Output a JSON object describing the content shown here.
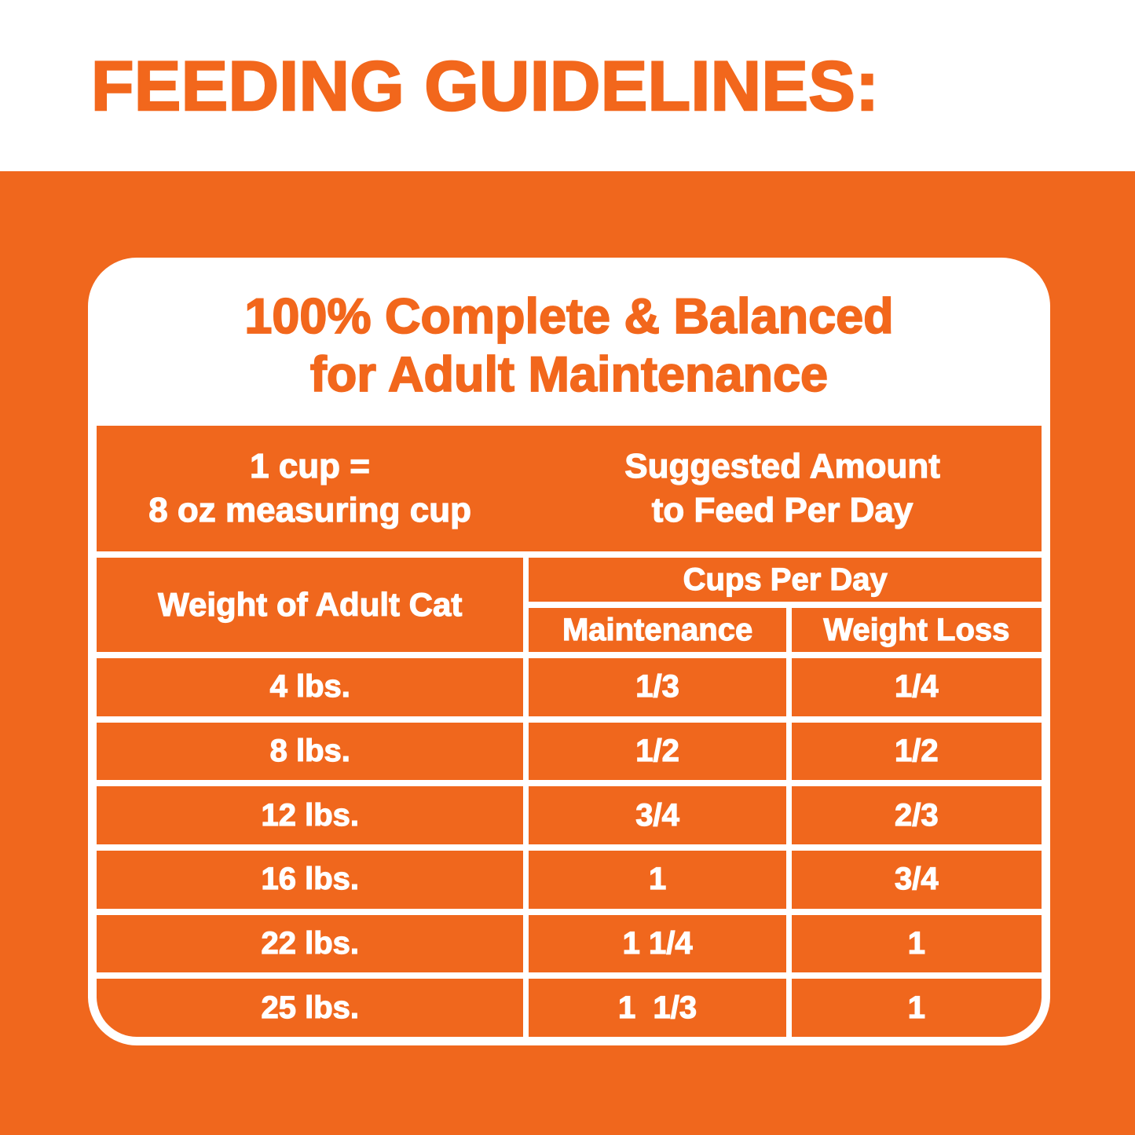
{
  "page": {
    "title": "FEEDING GUIDELINES:"
  },
  "colors": {
    "orange_background": "#F0671D",
    "orange_text": "#F2671C",
    "white": "#FFFFFF"
  },
  "card": {
    "heading_line1": "100% Complete & Balanced",
    "heading_line2": "for Adult Maintenance",
    "cup_note_line1": "1 cup =",
    "cup_note_line2": "8 oz measuring cup",
    "suggested_line1": "Suggested Amount",
    "suggested_line2": "to Feed Per Day"
  },
  "table": {
    "weight_header": "Weight of Adult Cat",
    "cups_header": "Cups Per Day",
    "col_maintenance": "Maintenance",
    "col_weight_loss": "Weight Loss",
    "rows": [
      {
        "weight": "4 lbs.",
        "maintenance": "1/3",
        "weight_loss": "1/4"
      },
      {
        "weight": "8 lbs.",
        "maintenance": "1/2",
        "weight_loss": "1/2"
      },
      {
        "weight": "12 lbs.",
        "maintenance": "3/4",
        "weight_loss": "2/3"
      },
      {
        "weight": "16 lbs.",
        "maintenance": "1",
        "weight_loss": "3/4"
      },
      {
        "weight": "22 lbs.",
        "maintenance": "1 1/4",
        "weight_loss": "1"
      },
      {
        "weight": "25 lbs.",
        "maintenance": "1  1/3",
        "weight_loss": "1"
      }
    ]
  },
  "chart_data": {
    "type": "table",
    "title": "FEEDING GUIDELINES: 100% Complete & Balanced for Adult Maintenance",
    "note": "1 cup = 8 oz measuring cup",
    "group_header": "Suggested Amount to Feed Per Day (Cups Per Day)",
    "columns": [
      "Weight of Adult Cat",
      "Maintenance",
      "Weight Loss"
    ],
    "rows": [
      [
        "4 lbs.",
        "1/3",
        "1/4"
      ],
      [
        "8 lbs.",
        "1/2",
        "1/2"
      ],
      [
        "12 lbs.",
        "3/4",
        "2/3"
      ],
      [
        "16 lbs.",
        "1",
        "3/4"
      ],
      [
        "22 lbs.",
        "1 1/4",
        "1"
      ],
      [
        "25 lbs.",
        "1 1/3",
        "1"
      ]
    ]
  }
}
